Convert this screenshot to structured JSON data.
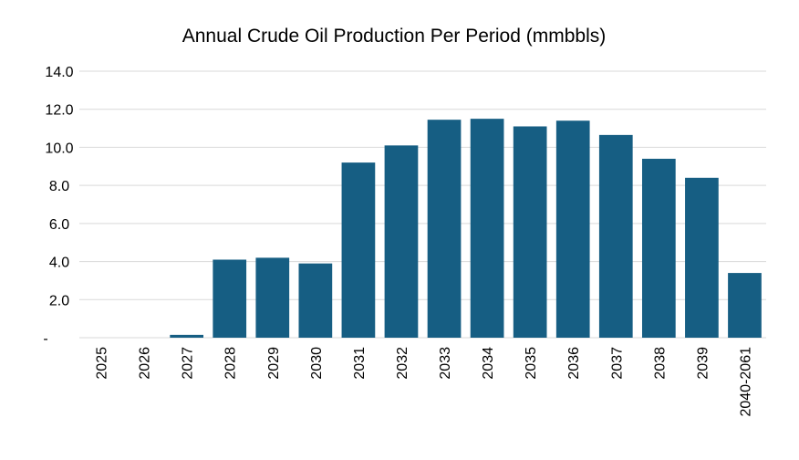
{
  "chart_data": {
    "type": "bar",
    "title": "Annual Crude Oil Production Per Period (mmbbls)",
    "xlabel": "",
    "ylabel": "",
    "categories": [
      "2025",
      "2026",
      "2027",
      "2028",
      "2029",
      "2030",
      "2031",
      "2032",
      "2033",
      "2034",
      "2035",
      "2036",
      "2037",
      "2038",
      "2039",
      "2040-2061"
    ],
    "values": [
      0,
      0,
      0.15,
      4.1,
      4.2,
      3.9,
      9.2,
      10.1,
      11.45,
      11.5,
      11.1,
      11.4,
      10.65,
      9.4,
      8.4,
      3.4
    ],
    "ylim": [
      0,
      14
    ],
    "yticks": [
      0,
      2,
      4,
      6,
      8,
      10,
      12,
      14
    ],
    "ytick_labels": [
      "-",
      "2.0",
      "4.0",
      "6.0",
      "8.0",
      "10.0",
      "12.0",
      "14.0"
    ],
    "bar_color": "#165e83",
    "grid": true,
    "legend": "none"
  }
}
